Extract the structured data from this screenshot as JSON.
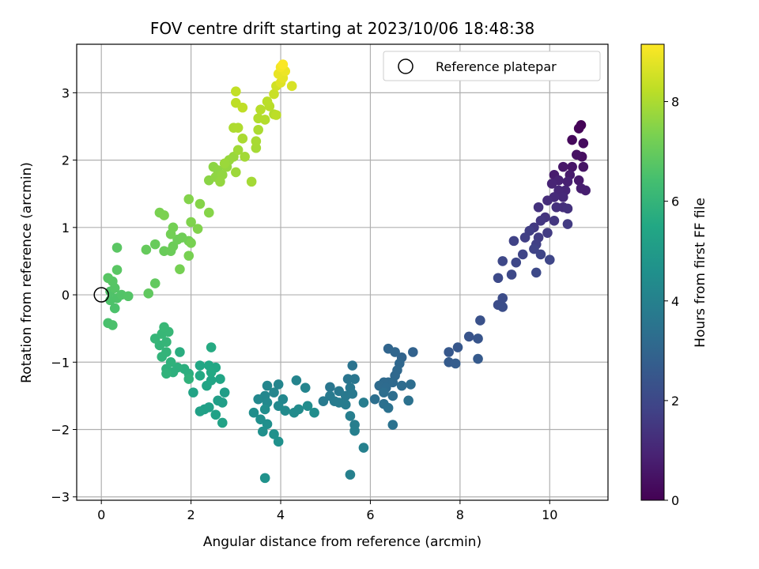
{
  "chart_data": {
    "type": "scatter",
    "title": "FOV centre drift starting at 2023/10/06 18:48:38",
    "xlabel": "Angular distance from reference (arcmin)",
    "ylabel": "Rotation from reference (arcmin)",
    "colorbar_label": "Hours from first FF file",
    "xlim": [
      -0.55,
      11.3
    ],
    "ylim": [
      -3.05,
      3.72
    ],
    "clim": [
      0,
      9.15
    ],
    "colormap": "viridis",
    "xticks": [
      0,
      2,
      4,
      6,
      8,
      10
    ],
    "yticks": [
      -3,
      -2,
      -1,
      0,
      1,
      2,
      3
    ],
    "cticks": [
      0,
      2,
      4,
      6,
      8
    ],
    "grid": true,
    "legend": {
      "placement": "top-right",
      "entries": [
        {
          "label": "Reference platepar",
          "marker": "open-circle"
        }
      ]
    },
    "reference_point": {
      "x": 0,
      "y": 0
    },
    "points": [
      {
        "x": 10.7,
        "y": 2.52,
        "c": 0.05
      },
      {
        "x": 10.65,
        "y": 2.47,
        "c": 0.12
      },
      {
        "x": 10.5,
        "y": 2.3,
        "c": 0.2
      },
      {
        "x": 10.75,
        "y": 2.25,
        "c": 0.28
      },
      {
        "x": 10.72,
        "y": 2.05,
        "c": 0.35
      },
      {
        "x": 10.6,
        "y": 2.08,
        "c": 0.42
      },
      {
        "x": 10.75,
        "y": 1.9,
        "c": 0.5
      },
      {
        "x": 10.5,
        "y": 1.9,
        "c": 0.55
      },
      {
        "x": 10.3,
        "y": 1.9,
        "c": 0.6
      },
      {
        "x": 10.65,
        "y": 1.7,
        "c": 0.65
      },
      {
        "x": 10.45,
        "y": 1.78,
        "c": 0.7
      },
      {
        "x": 10.1,
        "y": 1.78,
        "c": 0.72
      },
      {
        "x": 10.7,
        "y": 1.58,
        "c": 0.78
      },
      {
        "x": 10.8,
        "y": 1.55,
        "c": 0.8
      },
      {
        "x": 10.4,
        "y": 1.68,
        "c": 0.85
      },
      {
        "x": 10.2,
        "y": 1.7,
        "c": 0.9
      },
      {
        "x": 10.05,
        "y": 1.65,
        "c": 0.95
      },
      {
        "x": 10.35,
        "y": 1.55,
        "c": 1.0
      },
      {
        "x": 10.2,
        "y": 1.55,
        "c": 1.05
      },
      {
        "x": 10.3,
        "y": 1.45,
        "c": 1.1
      },
      {
        "x": 10.1,
        "y": 1.45,
        "c": 1.15
      },
      {
        "x": 9.95,
        "y": 1.4,
        "c": 1.2
      },
      {
        "x": 10.3,
        "y": 1.3,
        "c": 1.25
      },
      {
        "x": 10.15,
        "y": 1.3,
        "c": 1.3
      },
      {
        "x": 10.4,
        "y": 1.28,
        "c": 1.32
      },
      {
        "x": 9.75,
        "y": 1.3,
        "c": 1.35
      },
      {
        "x": 9.9,
        "y": 1.15,
        "c": 1.4
      },
      {
        "x": 10.1,
        "y": 1.1,
        "c": 1.45
      },
      {
        "x": 9.8,
        "y": 1.1,
        "c": 1.5
      },
      {
        "x": 9.65,
        "y": 1.0,
        "c": 1.55
      },
      {
        "x": 10.4,
        "y": 1.05,
        "c": 1.6
      },
      {
        "x": 9.95,
        "y": 0.92,
        "c": 1.62
      },
      {
        "x": 9.75,
        "y": 0.85,
        "c": 1.65
      },
      {
        "x": 9.55,
        "y": 0.95,
        "c": 1.7
      },
      {
        "x": 9.45,
        "y": 0.85,
        "c": 1.72
      },
      {
        "x": 9.7,
        "y": 0.75,
        "c": 1.75
      },
      {
        "x": 9.2,
        "y": 0.8,
        "c": 1.8
      },
      {
        "x": 9.65,
        "y": 0.68,
        "c": 1.85
      },
      {
        "x": 9.4,
        "y": 0.6,
        "c": 1.88
      },
      {
        "x": 9.8,
        "y": 0.6,
        "c": 1.9
      },
      {
        "x": 10.0,
        "y": 0.52,
        "c": 1.92
      },
      {
        "x": 9.25,
        "y": 0.48,
        "c": 1.95
      },
      {
        "x": 8.95,
        "y": 0.5,
        "c": 2.0
      },
      {
        "x": 9.15,
        "y": 0.3,
        "c": 2.02
      },
      {
        "x": 9.7,
        "y": 0.33,
        "c": 2.05
      },
      {
        "x": 8.85,
        "y": 0.25,
        "c": 2.08
      },
      {
        "x": 8.95,
        "y": -0.05,
        "c": 2.12
      },
      {
        "x": 8.85,
        "y": -0.15,
        "c": 2.15
      },
      {
        "x": 8.95,
        "y": -0.18,
        "c": 2.18
      },
      {
        "x": 8.45,
        "y": -0.38,
        "c": 2.3
      },
      {
        "x": 8.2,
        "y": -0.62,
        "c": 2.4
      },
      {
        "x": 8.4,
        "y": -0.65,
        "c": 2.45
      },
      {
        "x": 7.95,
        "y": -0.78,
        "c": 2.5
      },
      {
        "x": 7.75,
        "y": -0.85,
        "c": 2.55
      },
      {
        "x": 8.4,
        "y": -0.95,
        "c": 2.6
      },
      {
        "x": 7.75,
        "y": -1.0,
        "c": 2.65
      },
      {
        "x": 7.9,
        "y": -1.02,
        "c": 2.7
      },
      {
        "x": 6.95,
        "y": -0.85,
        "c": 2.9
      },
      {
        "x": 6.7,
        "y": -0.93,
        "c": 2.95
      },
      {
        "x": 6.4,
        "y": -0.8,
        "c": 3.0
      },
      {
        "x": 6.55,
        "y": -0.85,
        "c": 3.02
      },
      {
        "x": 6.65,
        "y": -1.02,
        "c": 3.05
      },
      {
        "x": 6.6,
        "y": -1.12,
        "c": 3.08
      },
      {
        "x": 6.55,
        "y": -1.2,
        "c": 3.1
      },
      {
        "x": 6.5,
        "y": -1.3,
        "c": 3.12
      },
      {
        "x": 6.4,
        "y": -1.3,
        "c": 3.15
      },
      {
        "x": 6.3,
        "y": -1.3,
        "c": 3.18
      },
      {
        "x": 6.2,
        "y": -1.35,
        "c": 3.2
      },
      {
        "x": 6.35,
        "y": -1.38,
        "c": 3.22
      },
      {
        "x": 6.7,
        "y": -1.35,
        "c": 3.25
      },
      {
        "x": 6.9,
        "y": -1.33,
        "c": 3.28
      },
      {
        "x": 6.3,
        "y": -1.45,
        "c": 3.3
      },
      {
        "x": 6.5,
        "y": -1.5,
        "c": 3.32
      },
      {
        "x": 6.1,
        "y": -1.55,
        "c": 3.35
      },
      {
        "x": 6.3,
        "y": -1.62,
        "c": 3.38
      },
      {
        "x": 6.85,
        "y": -1.57,
        "c": 3.4
      },
      {
        "x": 6.4,
        "y": -1.68,
        "c": 3.42
      },
      {
        "x": 6.5,
        "y": -1.93,
        "c": 3.45
      },
      {
        "x": 5.6,
        "y": -1.05,
        "c": 3.5
      },
      {
        "x": 5.5,
        "y": -1.25,
        "c": 3.55
      },
      {
        "x": 5.65,
        "y": -1.25,
        "c": 3.58
      },
      {
        "x": 5.1,
        "y": -1.37,
        "c": 3.6
      },
      {
        "x": 5.55,
        "y": -1.38,
        "c": 3.62
      },
      {
        "x": 5.3,
        "y": -1.43,
        "c": 3.65
      },
      {
        "x": 5.45,
        "y": -1.5,
        "c": 3.68
      },
      {
        "x": 5.6,
        "y": -1.47,
        "c": 3.7
      },
      {
        "x": 5.1,
        "y": -1.5,
        "c": 3.72
      },
      {
        "x": 4.95,
        "y": -1.58,
        "c": 3.75
      },
      {
        "x": 5.2,
        "y": -1.58,
        "c": 3.78
      },
      {
        "x": 5.3,
        "y": -1.6,
        "c": 3.8
      },
      {
        "x": 5.45,
        "y": -1.63,
        "c": 3.82
      },
      {
        "x": 5.85,
        "y": -1.6,
        "c": 3.85
      },
      {
        "x": 5.55,
        "y": -1.8,
        "c": 3.88
      },
      {
        "x": 5.65,
        "y": -1.93,
        "c": 3.9
      },
      {
        "x": 5.65,
        "y": -2.02,
        "c": 3.92
      },
      {
        "x": 5.85,
        "y": -2.27,
        "c": 3.95
      },
      {
        "x": 5.55,
        "y": -2.67,
        "c": 3.98
      },
      {
        "x": 4.35,
        "y": -1.27,
        "c": 4.1
      },
      {
        "x": 4.55,
        "y": -1.38,
        "c": 4.12
      },
      {
        "x": 3.95,
        "y": -1.33,
        "c": 4.15
      },
      {
        "x": 3.7,
        "y": -1.35,
        "c": 4.18
      },
      {
        "x": 3.85,
        "y": -1.45,
        "c": 4.2
      },
      {
        "x": 4.05,
        "y": -1.55,
        "c": 4.22
      },
      {
        "x": 3.65,
        "y": -1.5,
        "c": 4.25
      },
      {
        "x": 3.5,
        "y": -1.55,
        "c": 4.28
      },
      {
        "x": 3.7,
        "y": -1.6,
        "c": 4.3
      },
      {
        "x": 3.95,
        "y": -1.65,
        "c": 4.32
      },
      {
        "x": 4.1,
        "y": -1.72,
        "c": 4.35
      },
      {
        "x": 4.3,
        "y": -1.75,
        "c": 4.38
      },
      {
        "x": 4.4,
        "y": -1.7,
        "c": 4.4
      },
      {
        "x": 4.6,
        "y": -1.65,
        "c": 4.42
      },
      {
        "x": 4.75,
        "y": -1.75,
        "c": 4.45
      },
      {
        "x": 3.65,
        "y": -1.7,
        "c": 4.48
      },
      {
        "x": 3.4,
        "y": -1.75,
        "c": 4.5
      },
      {
        "x": 3.55,
        "y": -1.85,
        "c": 4.52
      },
      {
        "x": 3.7,
        "y": -1.92,
        "c": 4.55
      },
      {
        "x": 3.6,
        "y": -2.03,
        "c": 4.58
      },
      {
        "x": 3.85,
        "y": -2.07,
        "c": 4.6
      },
      {
        "x": 3.95,
        "y": -2.18,
        "c": 4.62
      },
      {
        "x": 3.65,
        "y": -2.72,
        "c": 4.65
      },
      {
        "x": 2.75,
        "y": -1.45,
        "c": 5.1
      },
      {
        "x": 2.6,
        "y": -1.57,
        "c": 5.12
      },
      {
        "x": 2.7,
        "y": -1.6,
        "c": 5.15
      },
      {
        "x": 2.3,
        "y": -1.7,
        "c": 5.18
      },
      {
        "x": 2.4,
        "y": -1.67,
        "c": 5.2
      },
      {
        "x": 2.2,
        "y": -1.73,
        "c": 5.22
      },
      {
        "x": 2.55,
        "y": -1.78,
        "c": 5.25
      },
      {
        "x": 2.7,
        "y": -1.9,
        "c": 5.28
      },
      {
        "x": 2.05,
        "y": -1.45,
        "c": 5.35
      },
      {
        "x": 2.35,
        "y": -1.35,
        "c": 5.38
      },
      {
        "x": 2.45,
        "y": -1.27,
        "c": 5.4
      },
      {
        "x": 2.65,
        "y": -1.25,
        "c": 5.42
      },
      {
        "x": 2.2,
        "y": -1.05,
        "c": 5.45
      },
      {
        "x": 2.4,
        "y": -1.05,
        "c": 5.48
      },
      {
        "x": 2.55,
        "y": -1.08,
        "c": 5.5
      },
      {
        "x": 2.45,
        "y": -1.15,
        "c": 5.52
      },
      {
        "x": 2.2,
        "y": -1.2,
        "c": 5.55
      },
      {
        "x": 2.45,
        "y": -0.78,
        "c": 5.6
      },
      {
        "x": 1.75,
        "y": -0.85,
        "c": 5.7
      },
      {
        "x": 1.85,
        "y": -1.1,
        "c": 5.75
      },
      {
        "x": 1.95,
        "y": -1.17,
        "c": 5.78
      },
      {
        "x": 1.7,
        "y": -1.08,
        "c": 5.8
      },
      {
        "x": 1.6,
        "y": -1.15,
        "c": 5.82
      },
      {
        "x": 1.45,
        "y": -1.1,
        "c": 5.85
      },
      {
        "x": 1.55,
        "y": -1.0,
        "c": 5.88
      },
      {
        "x": 1.95,
        "y": -1.25,
        "c": 5.9
      },
      {
        "x": 1.45,
        "y": -1.17,
        "c": 5.92
      },
      {
        "x": 1.35,
        "y": -0.92,
        "c": 5.95
      },
      {
        "x": 1.45,
        "y": -0.85,
        "c": 5.98
      },
      {
        "x": 1.3,
        "y": -0.75,
        "c": 6.0
      },
      {
        "x": 1.45,
        "y": -0.7,
        "c": 6.02
      },
      {
        "x": 1.2,
        "y": -0.65,
        "c": 6.05
      },
      {
        "x": 1.35,
        "y": -0.58,
        "c": 6.08
      },
      {
        "x": 1.5,
        "y": -0.55,
        "c": 6.1
      },
      {
        "x": 1.4,
        "y": -0.48,
        "c": 6.12
      },
      {
        "x": 0.15,
        "y": -0.42,
        "c": 6.5
      },
      {
        "x": 0.25,
        "y": -0.45,
        "c": 6.52
      },
      {
        "x": 0.3,
        "y": -0.2,
        "c": 6.55
      },
      {
        "x": 0.2,
        "y": -0.08,
        "c": 6.58
      },
      {
        "x": 0.35,
        "y": -0.05,
        "c": 6.6
      },
      {
        "x": 0.2,
        "y": 0.05,
        "c": 6.62
      },
      {
        "x": 0.45,
        "y": 0.0,
        "c": 6.65
      },
      {
        "x": 0.6,
        "y": -0.02,
        "c": 6.68
      },
      {
        "x": 0.3,
        "y": 0.1,
        "c": 6.7
      },
      {
        "x": 0.25,
        "y": 0.2,
        "c": 6.72
      },
      {
        "x": 0.15,
        "y": 0.25,
        "c": 6.75
      },
      {
        "x": 0.35,
        "y": 0.37,
        "c": 6.78
      },
      {
        "x": 0.35,
        "y": 0.7,
        "c": 6.8
      },
      {
        "x": 1.05,
        "y": 0.02,
        "c": 6.9
      },
      {
        "x": 1.2,
        "y": 0.17,
        "c": 6.92
      },
      {
        "x": 1.0,
        "y": 0.67,
        "c": 7.0
      },
      {
        "x": 1.2,
        "y": 0.75,
        "c": 7.02
      },
      {
        "x": 1.4,
        "y": 0.65,
        "c": 7.05
      },
      {
        "x": 1.55,
        "y": 0.65,
        "c": 7.08
      },
      {
        "x": 1.6,
        "y": 0.72,
        "c": 7.1
      },
      {
        "x": 1.7,
        "y": 0.82,
        "c": 7.12
      },
      {
        "x": 1.8,
        "y": 0.85,
        "c": 7.15
      },
      {
        "x": 1.95,
        "y": 0.8,
        "c": 7.18
      },
      {
        "x": 1.55,
        "y": 0.9,
        "c": 7.2
      },
      {
        "x": 1.6,
        "y": 1.0,
        "c": 7.22
      },
      {
        "x": 1.75,
        "y": 0.38,
        "c": 7.25
      },
      {
        "x": 1.95,
        "y": 0.58,
        "c": 7.28
      },
      {
        "x": 2.0,
        "y": 0.77,
        "c": 7.3
      },
      {
        "x": 1.3,
        "y": 1.22,
        "c": 7.32
      },
      {
        "x": 1.4,
        "y": 1.18,
        "c": 7.35
      },
      {
        "x": 2.0,
        "y": 1.08,
        "c": 7.4
      },
      {
        "x": 2.15,
        "y": 0.98,
        "c": 7.42
      },
      {
        "x": 1.95,
        "y": 1.42,
        "c": 7.45
      },
      {
        "x": 2.2,
        "y": 1.35,
        "c": 7.48
      },
      {
        "x": 2.4,
        "y": 1.22,
        "c": 7.5
      },
      {
        "x": 2.4,
        "y": 1.7,
        "c": 7.55
      },
      {
        "x": 2.5,
        "y": 1.9,
        "c": 7.58
      },
      {
        "x": 2.6,
        "y": 1.85,
        "c": 7.6
      },
      {
        "x": 2.55,
        "y": 1.75,
        "c": 7.62
      },
      {
        "x": 2.7,
        "y": 1.78,
        "c": 7.65
      },
      {
        "x": 2.65,
        "y": 1.68,
        "c": 7.68
      },
      {
        "x": 2.8,
        "y": 1.9,
        "c": 7.7
      },
      {
        "x": 2.85,
        "y": 2.0,
        "c": 7.72
      },
      {
        "x": 2.95,
        "y": 2.05,
        "c": 7.75
      },
      {
        "x": 2.75,
        "y": 1.95,
        "c": 7.78
      },
      {
        "x": 3.0,
        "y": 1.82,
        "c": 7.8
      },
      {
        "x": 3.05,
        "y": 2.15,
        "c": 7.85
      },
      {
        "x": 3.2,
        "y": 2.05,
        "c": 7.88
      },
      {
        "x": 3.35,
        "y": 1.68,
        "c": 7.9
      },
      {
        "x": 3.45,
        "y": 2.18,
        "c": 7.92
      },
      {
        "x": 3.45,
        "y": 2.28,
        "c": 7.95
      },
      {
        "x": 3.15,
        "y": 2.32,
        "c": 7.98
      },
      {
        "x": 3.5,
        "y": 2.45,
        "c": 8.0
      },
      {
        "x": 2.95,
        "y": 2.48,
        "c": 8.02
      },
      {
        "x": 3.05,
        "y": 2.48,
        "c": 8.05
      },
      {
        "x": 3.5,
        "y": 2.62,
        "c": 8.08
      },
      {
        "x": 3.65,
        "y": 2.6,
        "c": 8.1
      },
      {
        "x": 3.85,
        "y": 2.68,
        "c": 8.12
      },
      {
        "x": 3.55,
        "y": 2.75,
        "c": 8.15
      },
      {
        "x": 3.75,
        "y": 2.8,
        "c": 8.18
      },
      {
        "x": 3.7,
        "y": 2.87,
        "c": 8.2
      },
      {
        "x": 3.9,
        "y": 2.67,
        "c": 8.22
      },
      {
        "x": 3.0,
        "y": 2.85,
        "c": 8.25
      },
      {
        "x": 3.15,
        "y": 2.78,
        "c": 8.28
      },
      {
        "x": 3.0,
        "y": 3.02,
        "c": 8.3
      },
      {
        "x": 3.85,
        "y": 2.98,
        "c": 8.4
      },
      {
        "x": 3.9,
        "y": 3.1,
        "c": 8.5
      },
      {
        "x": 4.25,
        "y": 3.1,
        "c": 8.6
      },
      {
        "x": 4.0,
        "y": 3.15,
        "c": 8.7
      },
      {
        "x": 4.05,
        "y": 3.22,
        "c": 8.8
      },
      {
        "x": 3.95,
        "y": 3.28,
        "c": 8.85
      },
      {
        "x": 4.1,
        "y": 3.32,
        "c": 8.9
      },
      {
        "x": 4.0,
        "y": 3.38,
        "c": 9.0
      },
      {
        "x": 4.05,
        "y": 3.42,
        "c": 9.1
      }
    ]
  }
}
